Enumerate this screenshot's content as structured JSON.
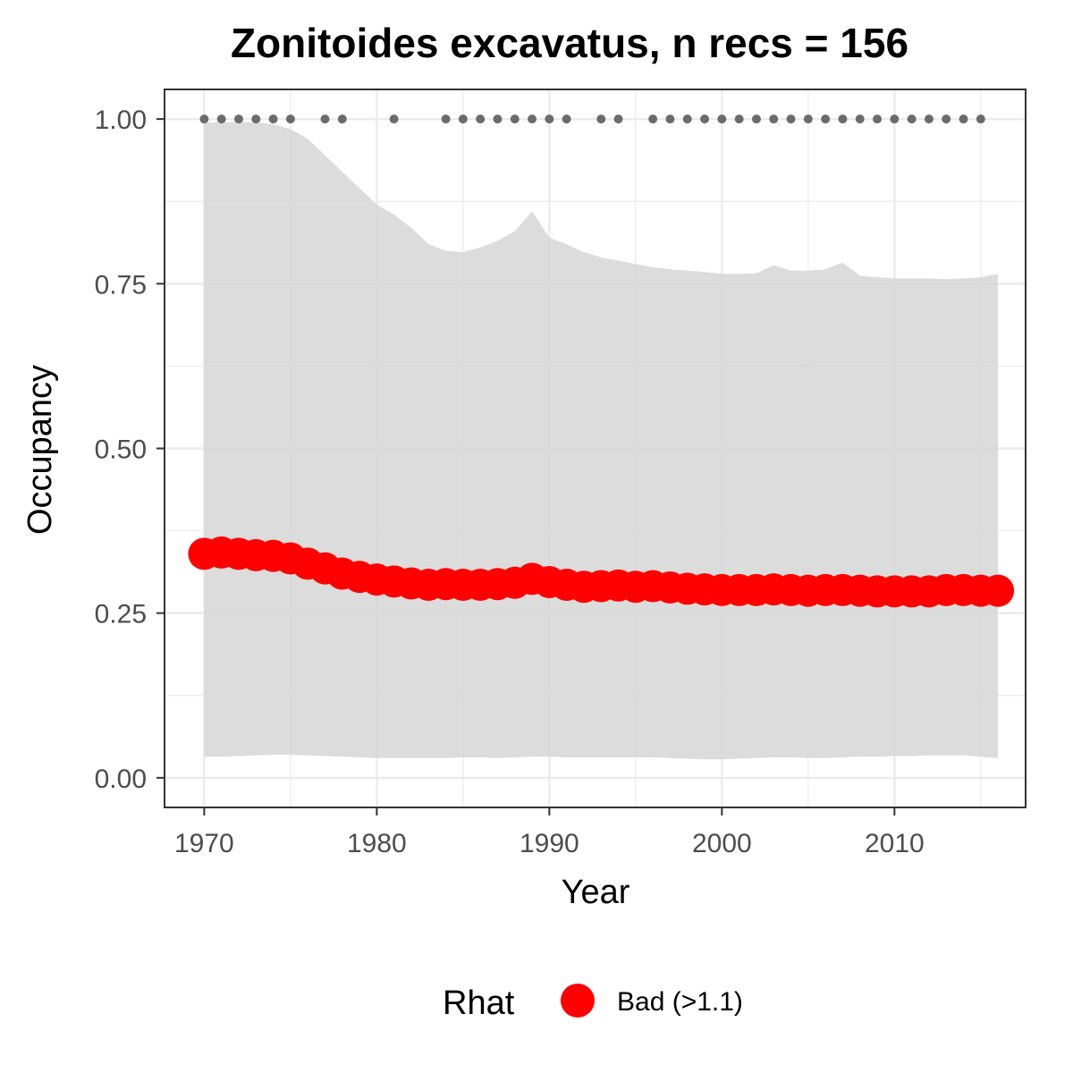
{
  "chart_data": {
    "type": "line",
    "title": "Zonitoides excavatus, n recs = 156",
    "xlabel": "Year",
    "ylabel": "Occupancy",
    "xlim": [
      1967.7,
      2017.6
    ],
    "ylim": [
      -0.045,
      1.045
    ],
    "x_ticks": [
      1970,
      1980,
      1990,
      2000,
      2010
    ],
    "x_tick_labels": [
      "1970",
      "1980",
      "1990",
      "2000",
      "2010"
    ],
    "y_ticks": [
      0,
      0.25,
      0.5,
      0.75,
      1.0
    ],
    "y_tick_labels": [
      "0.00",
      "0.25",
      "0.50",
      "0.75",
      "1.00"
    ],
    "grid": true,
    "years": [
      1970,
      1971,
      1972,
      1973,
      1974,
      1975,
      1976,
      1977,
      1978,
      1979,
      1980,
      1981,
      1982,
      1983,
      1984,
      1985,
      1986,
      1987,
      1988,
      1989,
      1990,
      1991,
      1992,
      1993,
      1994,
      1995,
      1996,
      1997,
      1998,
      1999,
      2000,
      2001,
      2002,
      2003,
      2004,
      2005,
      2006,
      2007,
      2008,
      2009,
      2010,
      2011,
      2012,
      2013,
      2014,
      2015,
      2016
    ],
    "mean": [
      0.34,
      0.342,
      0.34,
      0.338,
      0.337,
      0.333,
      0.325,
      0.318,
      0.31,
      0.305,
      0.301,
      0.298,
      0.295,
      0.293,
      0.294,
      0.293,
      0.293,
      0.294,
      0.296,
      0.302,
      0.297,
      0.293,
      0.29,
      0.291,
      0.292,
      0.29,
      0.291,
      0.289,
      0.287,
      0.286,
      0.285,
      0.285,
      0.285,
      0.286,
      0.285,
      0.284,
      0.285,
      0.285,
      0.284,
      0.283,
      0.283,
      0.283,
      0.283,
      0.285,
      0.285,
      0.284,
      0.284
    ],
    "upper": [
      0.995,
      0.995,
      0.995,
      0.995,
      0.992,
      0.985,
      0.97,
      0.945,
      0.92,
      0.895,
      0.87,
      0.855,
      0.835,
      0.81,
      0.8,
      0.798,
      0.805,
      0.815,
      0.83,
      0.86,
      0.82,
      0.81,
      0.798,
      0.79,
      0.785,
      0.78,
      0.775,
      0.772,
      0.77,
      0.768,
      0.765,
      0.765,
      0.766,
      0.778,
      0.77,
      0.77,
      0.772,
      0.782,
      0.762,
      0.76,
      0.758,
      0.758,
      0.758,
      0.757,
      0.758,
      0.76,
      0.765
    ],
    "lower": [
      0.032,
      0.032,
      0.033,
      0.034,
      0.035,
      0.035,
      0.034,
      0.033,
      0.032,
      0.031,
      0.03,
      0.03,
      0.03,
      0.03,
      0.03,
      0.031,
      0.031,
      0.03,
      0.031,
      0.032,
      0.032,
      0.031,
      0.031,
      0.031,
      0.031,
      0.031,
      0.031,
      0.03,
      0.029,
      0.028,
      0.028,
      0.029,
      0.03,
      0.031,
      0.031,
      0.03,
      0.03,
      0.031,
      0.032,
      0.032,
      0.033,
      0.033,
      0.034,
      0.034,
      0.034,
      0.032,
      0.03
    ],
    "record_years": [
      1970,
      1971,
      1972,
      1973,
      1974,
      1975,
      1977,
      1978,
      1981,
      1984,
      1985,
      1986,
      1987,
      1988,
      1989,
      1990,
      1991,
      1993,
      1994,
      1996,
      1997,
      1998,
      1999,
      2000,
      2001,
      2002,
      2003,
      2004,
      2005,
      2006,
      2007,
      2008,
      2009,
      2010,
      2011,
      2012,
      2013,
      2014,
      2015
    ],
    "record_value": 1.0,
    "colors": {
      "ribbon": "#d6d6d6",
      "mean_points": "#ff0000",
      "record_points": "#6b6b6b",
      "grid": "#ebebeb",
      "panel_border": "#333333"
    },
    "legend": {
      "title": "Rhat",
      "entries": [
        {
          "label": "Bad (>1.1)",
          "color": "#ff0000"
        }
      ],
      "position": "bottom"
    }
  }
}
